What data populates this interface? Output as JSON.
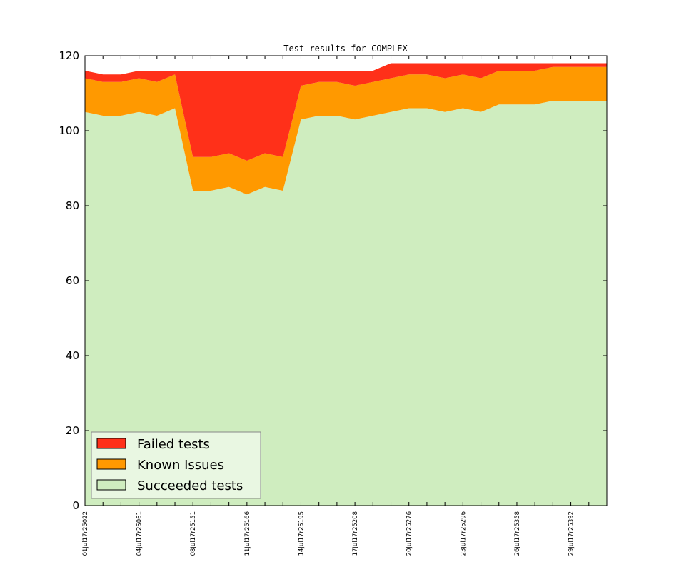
{
  "chart_data": {
    "type": "area",
    "title": "Test results for COMPLEX",
    "xlabel": "",
    "ylabel": "",
    "ylim": [
      0,
      120
    ],
    "yticks": [
      0,
      20,
      40,
      60,
      80,
      100,
      120
    ],
    "grid": false,
    "legend_placement": "lower-left",
    "categories": [
      "01Jul17r25022",
      "",
      "",
      "04Jul17r25061",
      "",
      "",
      "08Jul17r25151",
      "",
      "",
      "11Jul17r25166",
      "",
      "",
      "14Jul17r25195",
      "",
      "",
      "17Jul17r25208",
      "",
      "",
      "20Jul17r25276",
      "",
      "",
      "23Jul17r25296",
      "",
      "",
      "26Jul17r25358",
      "",
      "",
      "29Jul17r25392",
      "",
      ""
    ],
    "series": [
      {
        "name": "Succeeded tests",
        "color": "#cfedbf",
        "values": [
          105,
          104,
          104,
          105,
          104,
          106,
          84,
          84,
          85,
          83,
          85,
          84,
          103,
          104,
          104,
          103,
          104,
          105,
          106,
          106,
          105,
          106,
          105,
          107,
          107,
          107,
          108,
          108,
          108,
          108
        ]
      },
      {
        "name": "Known Issues",
        "color": "#ff9900",
        "values": [
          9,
          9,
          9,
          9,
          9,
          9,
          9,
          9,
          9,
          9,
          9,
          9,
          9,
          9,
          9,
          9,
          9,
          9,
          9,
          9,
          9,
          9,
          9,
          9,
          9,
          9,
          9,
          9,
          9,
          9
        ]
      },
      {
        "name": "Failed tests",
        "color": "#ff3019",
        "values": [
          2,
          2,
          2,
          2,
          3,
          1,
          23,
          23,
          22,
          24,
          22,
          23,
          4,
          3,
          3,
          4,
          3,
          4,
          3,
          3,
          4,
          3,
          4,
          2,
          2,
          2,
          1,
          1,
          1,
          1
        ]
      }
    ],
    "legend_order": [
      "Failed tests",
      "Known Issues",
      "Succeeded tests"
    ]
  }
}
